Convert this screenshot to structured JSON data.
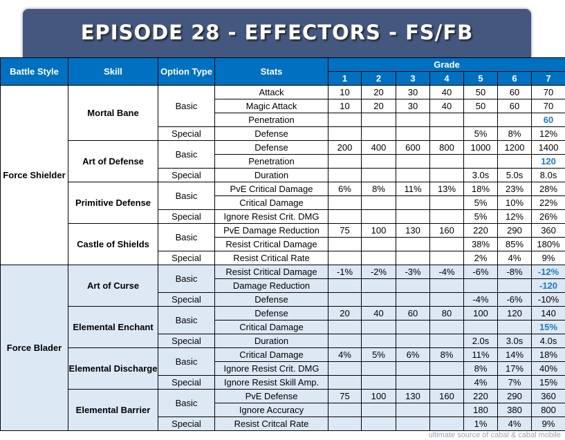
{
  "title": "EPISODE 28 - EFFECTORS - FS/FB",
  "watermark": "ultimate source of cabal & cabal mobile",
  "headers": {
    "battle_style": "Battle Style",
    "skill": "Skill",
    "option_type": "Option Type",
    "stats": "Stats",
    "grade": "Grade",
    "grades": [
      "1",
      "2",
      "3",
      "4",
      "5",
      "6",
      "7"
    ]
  },
  "styles": [
    {
      "name": "Force Shielder",
      "class": "fs",
      "skills": [
        {
          "name": "Mortal Bane",
          "options": [
            {
              "type": "Basic",
              "stats": [
                {
                  "stat": "Attack",
                  "values": [
                    "10",
                    "20",
                    "30",
                    "40",
                    "50",
                    "60",
                    "70"
                  ]
                },
                {
                  "stat": "Magic Attack",
                  "values": [
                    "10",
                    "20",
                    "30",
                    "40",
                    "50",
                    "60",
                    "70"
                  ]
                },
                {
                  "stat": "Penetration",
                  "values": [
                    "",
                    "",
                    "",
                    "",
                    "",
                    "",
                    "60"
                  ],
                  "hl": true
                }
              ]
            },
            {
              "type": "Special",
              "stats": [
                {
                  "stat": "Defense",
                  "values": [
                    "",
                    "",
                    "",
                    "",
                    "5%",
                    "8%",
                    "12%"
                  ]
                }
              ]
            }
          ]
        },
        {
          "name": "Art of Defense",
          "options": [
            {
              "type": "Basic",
              "stats": [
                {
                  "stat": "Defense",
                  "values": [
                    "200",
                    "400",
                    "600",
                    "800",
                    "1000",
                    "1200",
                    "1400"
                  ]
                },
                {
                  "stat": "Penetration",
                  "values": [
                    "",
                    "",
                    "",
                    "",
                    "",
                    "",
                    "120"
                  ],
                  "hl": true
                }
              ]
            },
            {
              "type": "Special",
              "stats": [
                {
                  "stat": "Duration",
                  "values": [
                    "",
                    "",
                    "",
                    "",
                    "3.0s",
                    "5.0s",
                    "8.0s"
                  ]
                }
              ]
            }
          ]
        },
        {
          "name": "Primitive Defense",
          "options": [
            {
              "type": "Basic",
              "stats": [
                {
                  "stat": "PvE Critical Damage",
                  "values": [
                    "6%",
                    "8%",
                    "11%",
                    "13%",
                    "18%",
                    "23%",
                    "28%"
                  ]
                },
                {
                  "stat": "Critical Damage",
                  "values": [
                    "",
                    "",
                    "",
                    "",
                    "5%",
                    "10%",
                    "22%"
                  ]
                }
              ]
            },
            {
              "type": "Special",
              "stats": [
                {
                  "stat": "Ignore Resist Crit. DMG",
                  "values": [
                    "",
                    "",
                    "",
                    "",
                    "5%",
                    "12%",
                    "26%"
                  ]
                }
              ]
            }
          ]
        },
        {
          "name": "Castle of Shields",
          "options": [
            {
              "type": "Basic",
              "stats": [
                {
                  "stat": "PvE Damage Reduction",
                  "values": [
                    "75",
                    "100",
                    "130",
                    "160",
                    "220",
                    "290",
                    "360"
                  ]
                },
                {
                  "stat": "Resist Critical Damage",
                  "values": [
                    "",
                    "",
                    "",
                    "",
                    "38%",
                    "85%",
                    "180%"
                  ]
                }
              ]
            },
            {
              "type": "Special",
              "stats": [
                {
                  "stat": "Resist Critical Rate",
                  "values": [
                    "",
                    "",
                    "",
                    "",
                    "2%",
                    "4%",
                    "9%"
                  ]
                }
              ]
            }
          ]
        }
      ]
    },
    {
      "name": "Force Blader",
      "class": "fb",
      "skills": [
        {
          "name": "Art of Curse",
          "options": [
            {
              "type": "Basic",
              "stats": [
                {
                  "stat": "Resist Critical Damage",
                  "values": [
                    "-1%",
                    "-2%",
                    "-3%",
                    "-4%",
                    "-6%",
                    "-8%",
                    "-12%"
                  ],
                  "hl": true
                },
                {
                  "stat": "Damage Reduction",
                  "values": [
                    "",
                    "",
                    "",
                    "",
                    "",
                    "",
                    "-120"
                  ],
                  "hl": true
                }
              ]
            },
            {
              "type": "Special",
              "stats": [
                {
                  "stat": "Defense",
                  "values": [
                    "",
                    "",
                    "",
                    "",
                    "-4%",
                    "-6%",
                    "-10%"
                  ]
                }
              ]
            }
          ]
        },
        {
          "name": "Elemental Enchant",
          "options": [
            {
              "type": "Basic",
              "stats": [
                {
                  "stat": "Defense",
                  "values": [
                    "20",
                    "40",
                    "60",
                    "80",
                    "100",
                    "120",
                    "140"
                  ]
                },
                {
                  "stat": "Critical Damage",
                  "values": [
                    "",
                    "",
                    "",
                    "",
                    "",
                    "",
                    "15%"
                  ],
                  "hl": true
                }
              ]
            },
            {
              "type": "Special",
              "stats": [
                {
                  "stat": "Duration",
                  "values": [
                    "",
                    "",
                    "",
                    "",
                    "2.0s",
                    "3.0s",
                    "4.0s"
                  ]
                }
              ]
            }
          ]
        },
        {
          "name": "Elemental Discharge",
          "options": [
            {
              "type": "Basic",
              "stats": [
                {
                  "stat": "Critical Damage",
                  "values": [
                    "4%",
                    "5%",
                    "6%",
                    "8%",
                    "11%",
                    "14%",
                    "18%"
                  ]
                },
                {
                  "stat": "Ignore Resist Crit. DMG",
                  "values": [
                    "",
                    "",
                    "",
                    "",
                    "8%",
                    "17%",
                    "40%"
                  ]
                }
              ]
            },
            {
              "type": "Special",
              "stats": [
                {
                  "stat": "Ignore Resist Skill Amp.",
                  "values": [
                    "",
                    "",
                    "",
                    "",
                    "4%",
                    "7%",
                    "15%"
                  ]
                }
              ]
            }
          ]
        },
        {
          "name": "Elemental Barrier",
          "options": [
            {
              "type": "Basic",
              "stats": [
                {
                  "stat": "PvE Defense",
                  "values": [
                    "75",
                    "100",
                    "130",
                    "160",
                    "220",
                    "290",
                    "360"
                  ]
                },
                {
                  "stat": "Ignore Accuracy",
                  "values": [
                    "",
                    "",
                    "",
                    "",
                    "180",
                    "380",
                    "800"
                  ]
                }
              ]
            },
            {
              "type": "Special",
              "stats": [
                {
                  "stat": "Resist Critcal Rate",
                  "values": [
                    "",
                    "",
                    "",
                    "",
                    "1%",
                    "4%",
                    "9%"
                  ]
                }
              ]
            }
          ]
        }
      ]
    }
  ]
}
